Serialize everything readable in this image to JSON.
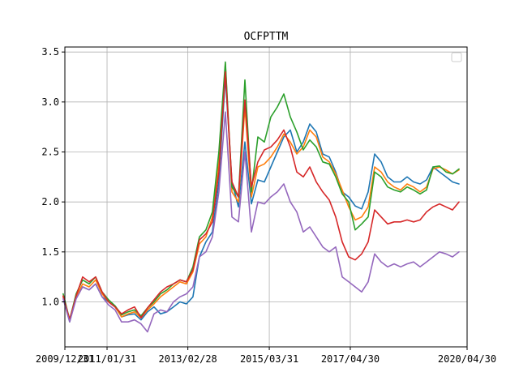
{
  "chart_data": {
    "type": "line",
    "title": "OCFPTTM",
    "xlabel": "",
    "ylabel": "",
    "x_ticks": [
      "2009/12/31",
      "2011/01/31",
      "2013/02/28",
      "2015/03/31",
      "2017/04/30",
      "2020/04/30"
    ],
    "xlim": [
      "2009/12/31",
      "2020/04/30"
    ],
    "ylim": [
      0.55,
      3.55
    ],
    "y_ticks": [
      1.0,
      1.5,
      2.0,
      2.5,
      3.0,
      3.5
    ],
    "grid": true,
    "legend": "top-right",
    "x": [
      "2009/12",
      "2010/02",
      "2010/04",
      "2010/06",
      "2010/08",
      "2010/10",
      "2010/12",
      "2011/02",
      "2011/04",
      "2011/06",
      "2011/08",
      "2011/10",
      "2011/12",
      "2012/02",
      "2012/04",
      "2012/06",
      "2012/08",
      "2012/10",
      "2012/12",
      "2013/02",
      "2013/04",
      "2013/06",
      "2013/08",
      "2013/10",
      "2013/12",
      "2014/02",
      "2014/04",
      "2014/06",
      "2014/08",
      "2014/10",
      "2014/12",
      "2015/02",
      "2015/04",
      "2015/06",
      "2015/08",
      "2015/10",
      "2015/12",
      "2016/02",
      "2016/04",
      "2016/06",
      "2016/08",
      "2016/10",
      "2016/12",
      "2017/02",
      "2017/04",
      "2017/06",
      "2017/08",
      "2017/10",
      "2017/12",
      "2018/02",
      "2018/04",
      "2018/06",
      "2018/08",
      "2018/10",
      "2018/12",
      "2019/02",
      "2019/04",
      "2019/06",
      "2019/08",
      "2019/10",
      "2019/12",
      "2020/02"
    ],
    "series": [
      {
        "color": "#1f77b4",
        "values": [
          1.05,
          0.8,
          1.05,
          1.15,
          1.12,
          1.18,
          1.05,
          1.0,
          0.95,
          0.85,
          0.87,
          0.88,
          0.82,
          0.9,
          0.95,
          0.88,
          0.9,
          0.95,
          1.0,
          0.98,
          1.05,
          1.45,
          1.6,
          1.7,
          2.2,
          3.25,
          2.2,
          1.95,
          2.6,
          1.98,
          2.22,
          2.2,
          2.35,
          2.5,
          2.65,
          2.72,
          2.5,
          2.6,
          2.78,
          2.7,
          2.48,
          2.45,
          2.3,
          2.1,
          2.05,
          1.96,
          1.93,
          2.1,
          2.48,
          2.4,
          2.25,
          2.2,
          2.2,
          2.25,
          2.2,
          2.18,
          2.22,
          2.35,
          2.3,
          2.25,
          2.2,
          2.18
        ]
      },
      {
        "color": "#ff7f0e",
        "values": [
          1.05,
          0.83,
          1.05,
          1.18,
          1.15,
          1.22,
          1.08,
          1.0,
          0.95,
          0.85,
          0.88,
          0.9,
          0.84,
          0.92,
          0.98,
          1.05,
          1.1,
          1.15,
          1.2,
          1.18,
          1.3,
          1.58,
          1.65,
          1.85,
          2.4,
          3.38,
          2.1,
          2.0,
          2.95,
          2.05,
          2.35,
          2.38,
          2.45,
          2.55,
          2.68,
          2.6,
          2.48,
          2.55,
          2.72,
          2.65,
          2.45,
          2.4,
          2.28,
          2.12,
          1.95,
          1.82,
          1.85,
          1.95,
          2.35,
          2.3,
          2.2,
          2.15,
          2.12,
          2.18,
          2.15,
          2.1,
          2.15,
          2.33,
          2.35,
          2.32,
          2.28,
          2.32
        ]
      },
      {
        "color": "#2ca02c",
        "values": [
          1.08,
          0.82,
          1.08,
          1.22,
          1.18,
          1.25,
          1.1,
          1.02,
          0.96,
          0.87,
          0.9,
          0.92,
          0.86,
          0.94,
          1.0,
          1.08,
          1.12,
          1.18,
          1.22,
          1.2,
          1.35,
          1.65,
          1.72,
          1.9,
          2.5,
          3.4,
          2.15,
          2.05,
          3.22,
          2.1,
          2.65,
          2.6,
          2.85,
          2.95,
          3.08,
          2.85,
          2.7,
          2.52,
          2.62,
          2.55,
          2.4,
          2.38,
          2.25,
          2.08,
          2.0,
          1.72,
          1.78,
          1.85,
          2.3,
          2.25,
          2.15,
          2.12,
          2.1,
          2.15,
          2.12,
          2.08,
          2.12,
          2.35,
          2.36,
          2.3,
          2.28,
          2.33
        ]
      },
      {
        "color": "#d62728",
        "values": [
          1.06,
          0.82,
          1.06,
          1.25,
          1.2,
          1.25,
          1.1,
          1.0,
          0.95,
          0.88,
          0.92,
          0.95,
          0.84,
          0.94,
          1.02,
          1.1,
          1.15,
          1.18,
          1.22,
          1.2,
          1.32,
          1.62,
          1.68,
          1.8,
          2.3,
          3.3,
          2.2,
          2.05,
          3.02,
          2.15,
          2.4,
          2.52,
          2.55,
          2.62,
          2.72,
          2.55,
          2.3,
          2.25,
          2.35,
          2.2,
          2.1,
          2.02,
          1.85,
          1.6,
          1.45,
          1.42,
          1.48,
          1.6,
          1.92,
          1.85,
          1.78,
          1.8,
          1.8,
          1.82,
          1.8,
          1.82,
          1.9,
          1.95,
          1.98,
          1.95,
          1.92,
          2.0
        ]
      },
      {
        "color": "#9467bd",
        "values": [
          1.03,
          0.8,
          1.03,
          1.15,
          1.12,
          1.18,
          1.05,
          0.97,
          0.92,
          0.8,
          0.8,
          0.82,
          0.78,
          0.7,
          0.88,
          0.92,
          0.9,
          1.0,
          1.05,
          1.08,
          1.15,
          1.45,
          1.5,
          1.65,
          2.1,
          2.9,
          1.85,
          1.8,
          2.5,
          1.7,
          2.0,
          1.98,
          2.05,
          2.1,
          2.18,
          2.0,
          1.9,
          1.7,
          1.75,
          1.65,
          1.55,
          1.5,
          1.55,
          1.25,
          1.2,
          1.15,
          1.1,
          1.2,
          1.48,
          1.4,
          1.35,
          1.38,
          1.35,
          1.38,
          1.4,
          1.35,
          1.4,
          1.45,
          1.5,
          1.48,
          1.45,
          1.5
        ]
      }
    ]
  }
}
